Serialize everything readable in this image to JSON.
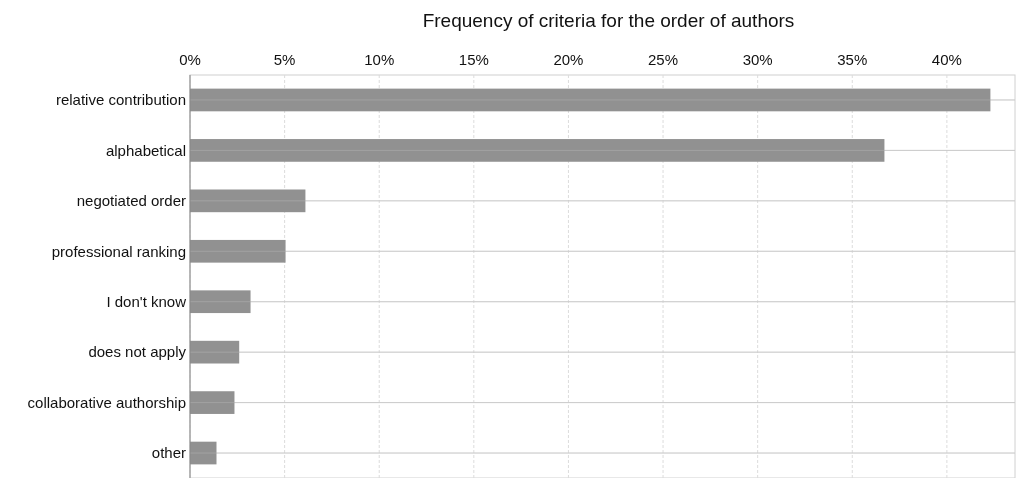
{
  "chart_data": {
    "type": "bar",
    "orientation": "horizontal",
    "title": "Frequency of criteria for the order of authors",
    "categories": [
      "relative contribution",
      "alphabetical",
      "negotiated order",
      "professional ranking",
      "I don't know",
      "does not apply",
      "collaborative authorship",
      "other"
    ],
    "values": [
      42.3,
      36.7,
      6.1,
      5.05,
      3.2,
      2.6,
      2.35,
      1.4
    ],
    "color": "#919191",
    "xlim": [
      0,
      43.6
    ],
    "xticks": [
      {
        "value": 0,
        "label": "0%"
      },
      {
        "value": 5,
        "label": "5%"
      },
      {
        "value": 10,
        "label": "10%"
      },
      {
        "value": 15,
        "label": "15%"
      },
      {
        "value": 20,
        "label": "20%"
      },
      {
        "value": 25,
        "label": "25%"
      },
      {
        "value": 30,
        "label": "30%"
      },
      {
        "value": 35,
        "label": "35%"
      },
      {
        "value": 40,
        "label": "40%"
      }
    ],
    "grid": true
  }
}
